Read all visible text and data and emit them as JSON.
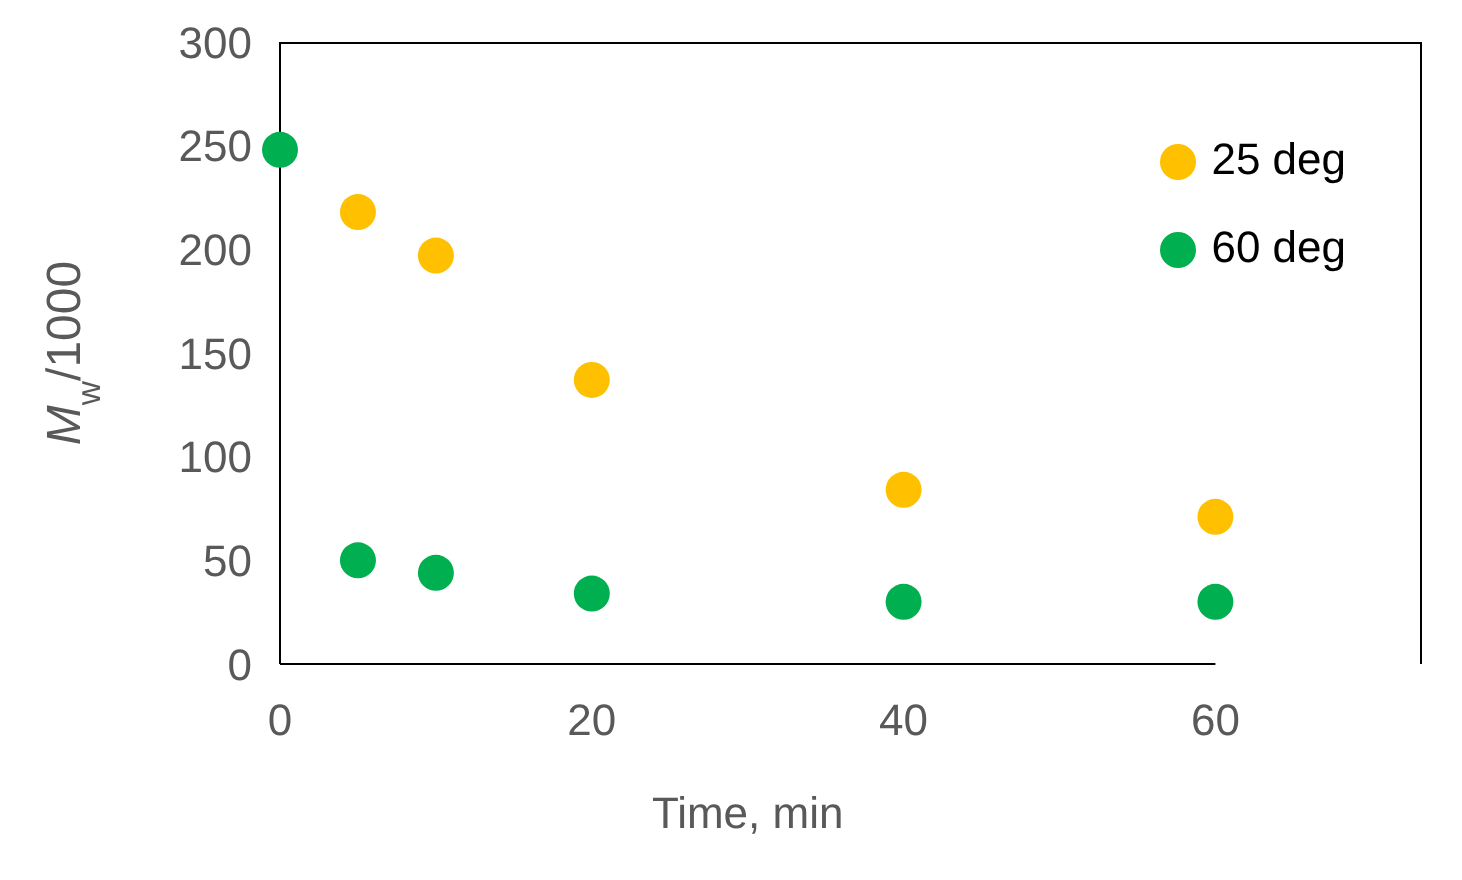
{
  "chart_data": {
    "type": "scatter",
    "xlabel": "Time, min",
    "ylabel": "M$_{w}$/1000",
    "x": [
      0,
      5,
      10,
      20,
      40,
      60
    ],
    "series": [
      {
        "name": "25 deg",
        "color": "#ffc000",
        "values": [
          null,
          218,
          197,
          137,
          84,
          71
        ]
      },
      {
        "name": "60 deg",
        "color": "#00b050",
        "values": [
          248,
          50,
          44,
          34,
          30,
          30
        ]
      }
    ],
    "xlim": [
      0,
      60
    ],
    "xticks": [
      0,
      20,
      40,
      60
    ],
    "ylim": [
      0,
      300
    ],
    "yticks": [
      0,
      50,
      100,
      150,
      200,
      250,
      300
    ],
    "grid": false,
    "legend": "top right",
    "marker": "circle"
  }
}
